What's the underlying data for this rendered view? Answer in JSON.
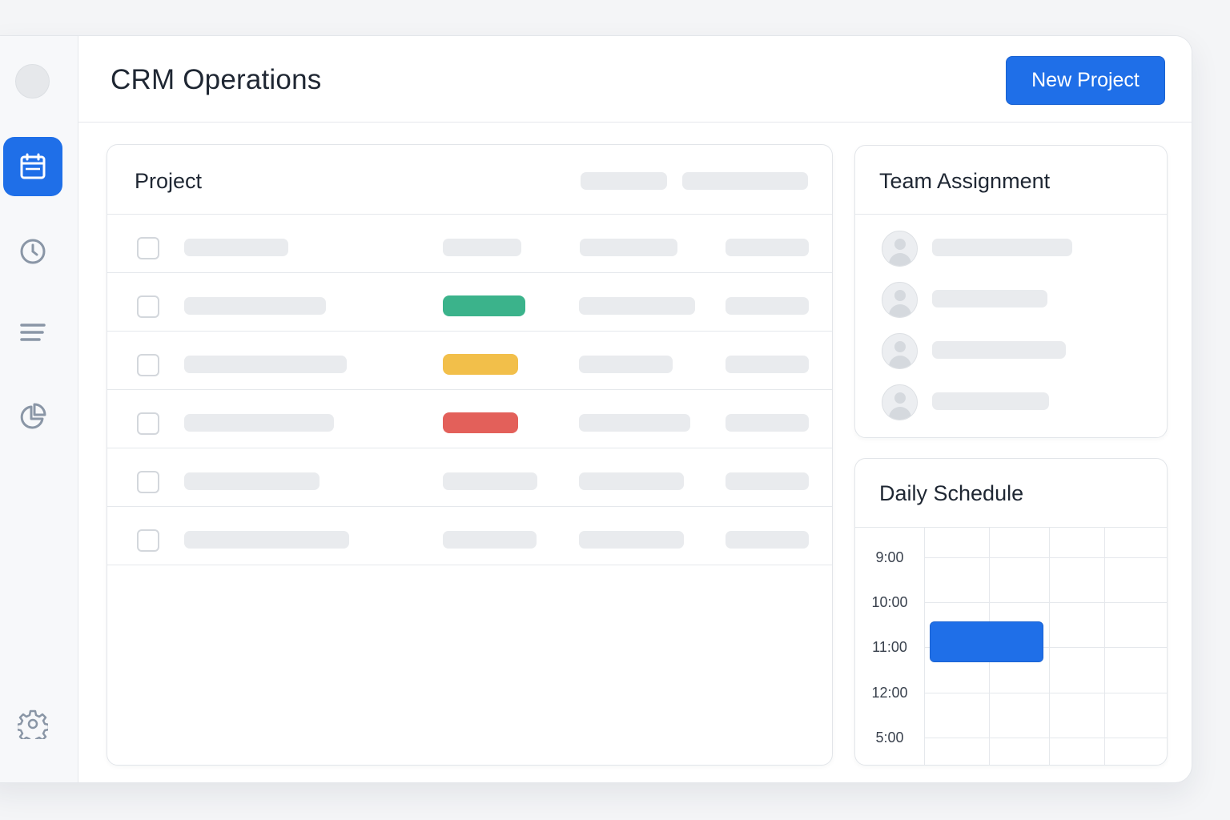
{
  "app": {
    "title": "CRM Operations",
    "new_project_label": "New Project",
    "accent_color": "#1f6fe8"
  },
  "sidebar": {
    "items": [
      {
        "icon": "calendar-icon",
        "active": true
      },
      {
        "icon": "clock-icon",
        "active": false
      },
      {
        "icon": "list-icon",
        "active": false
      },
      {
        "icon": "pie-chart-icon",
        "active": false
      },
      {
        "icon": "gear-icon",
        "active": false
      }
    ]
  },
  "projects": {
    "title": "Project",
    "rows": [
      {
        "status": null
      },
      {
        "status": "green",
        "status_color": "#3bb38b"
      },
      {
        "status": "yellow",
        "status_color": "#f2bf4a"
      },
      {
        "status": "red",
        "status_color": "#e3605a"
      },
      {
        "status": null
      },
      {
        "status": null
      }
    ]
  },
  "team": {
    "title": "Team Assignment",
    "members_count": 4
  },
  "schedule": {
    "title": "Daily Schedule",
    "times": [
      "9:00",
      "10:00",
      "11:00",
      "12:00",
      "5:00"
    ]
  }
}
